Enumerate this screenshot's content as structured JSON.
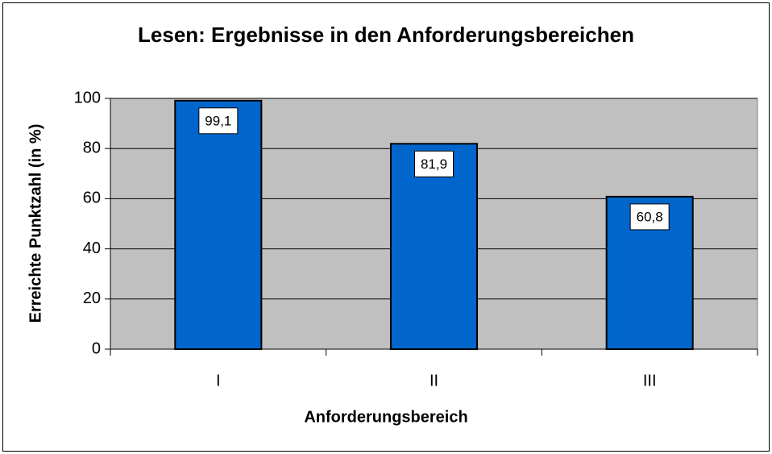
{
  "chart_data": {
    "type": "bar",
    "title": "Lesen: Ergebnisse in den Anforderungsbereichen",
    "x_label": "Anforderungsbereich",
    "y_label": "Erreichte Punktzahl (in %)",
    "categories": [
      "I",
      "II",
      "III"
    ],
    "values": [
      99.1,
      81.9,
      60.8
    ],
    "value_labels": [
      "99,1",
      "81,9",
      "60,8"
    ],
    "color": "#0066cc",
    "ylim": [
      0,
      100
    ],
    "yticks": [
      0,
      20,
      40,
      60,
      80,
      100
    ],
    "grid": true
  }
}
